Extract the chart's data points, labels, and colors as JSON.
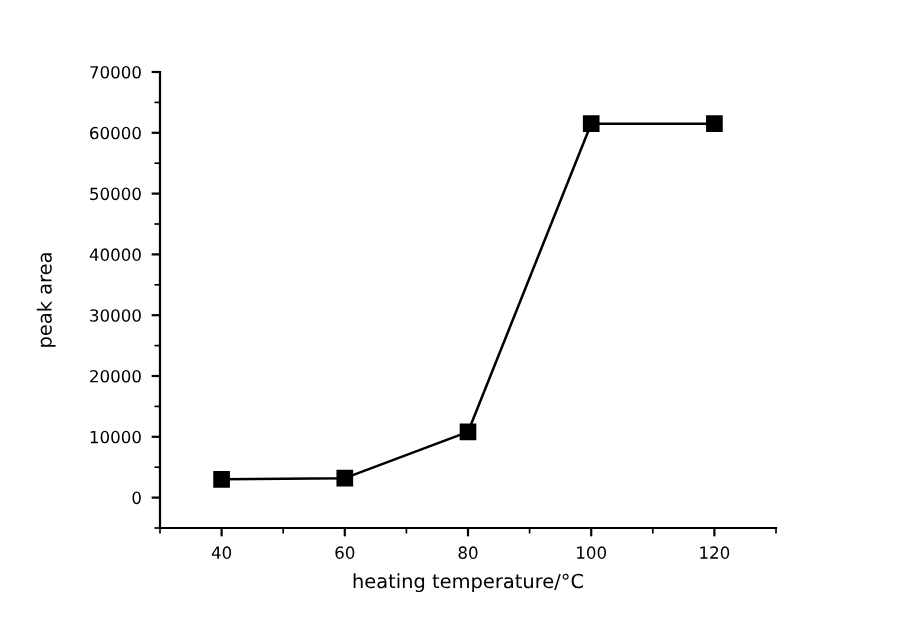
{
  "chart_data": {
    "type": "line",
    "xlabel": "heating temperature/°C",
    "ylabel": "peak area",
    "x": [
      40,
      60,
      80,
      100,
      120
    ],
    "series": [
      {
        "color": "#000000",
        "values": [
          3000,
          3200,
          10800,
          61500,
          61500
        ]
      }
    ],
    "xlim": [
      30,
      130
    ],
    "xticks": [
      40,
      60,
      80,
      100,
      120
    ],
    "ylim": [
      -5000,
      70000
    ],
    "yticks": [
      0,
      10000,
      20000,
      30000,
      40000,
      50000,
      60000,
      70000
    ],
    "marker": "square",
    "line_style": "solid",
    "grid": false,
    "legend": false
  }
}
